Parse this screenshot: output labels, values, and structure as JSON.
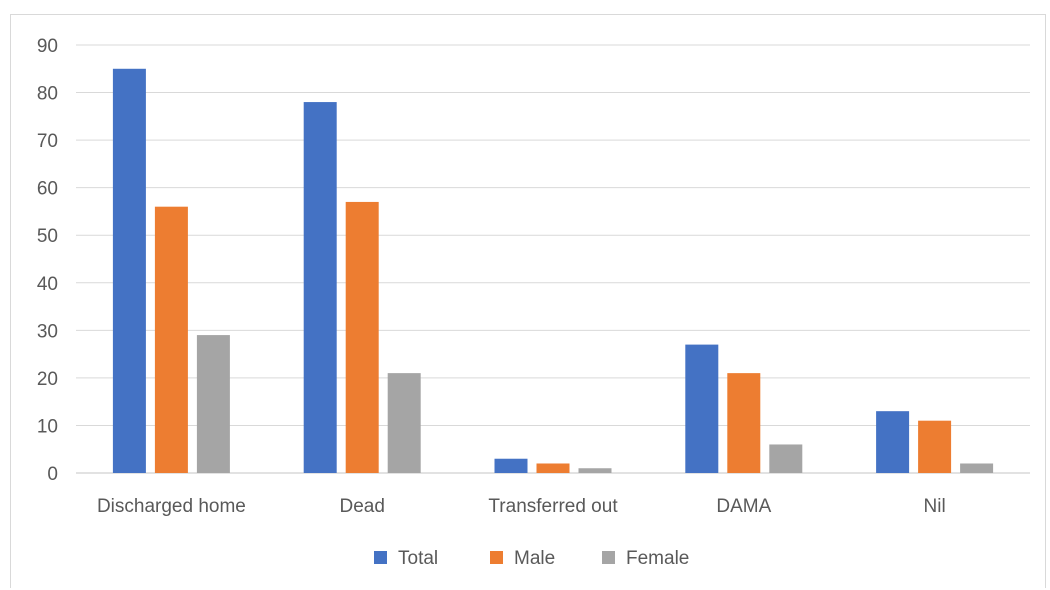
{
  "chart_data": {
    "type": "bar",
    "title": "",
    "xlabel": "",
    "ylabel": "",
    "categories": [
      "Discharged home",
      "Dead",
      "Transferred out",
      "DAMA",
      "Nil"
    ],
    "series": [
      {
        "name": "Total",
        "color": "#4472c4",
        "values": [
          85,
          78,
          3,
          27,
          13
        ]
      },
      {
        "name": "Male",
        "color": "#ed7d31",
        "values": [
          56,
          57,
          2,
          21,
          11
        ]
      },
      {
        "name": "Female",
        "color": "#a5a5a5",
        "values": [
          29,
          21,
          1,
          6,
          2
        ]
      }
    ],
    "ylim": [
      0,
      90
    ],
    "yticks": [
      0,
      10,
      20,
      30,
      40,
      50,
      60,
      70,
      80,
      90
    ],
    "grid": true,
    "legend_position": "bottom"
  }
}
